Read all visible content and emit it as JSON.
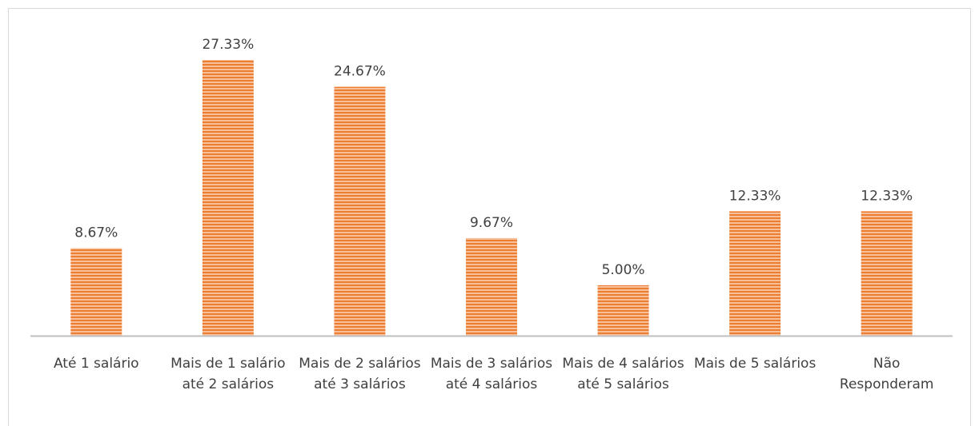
{
  "chart_data": {
    "type": "bar",
    "categories": [
      "Até 1 salário",
      "Mais de 1 salário até 2 salários",
      "Mais de 2 salários até 3 salários",
      "Mais de 3 salários até 4 salários",
      "Mais de 4 salários até 5 salários",
      "Mais de 5 salários",
      "Não Responderam"
    ],
    "values": [
      8.67,
      27.33,
      24.67,
      9.67,
      5.0,
      12.33,
      12.33
    ],
    "value_labels": [
      "8.67%",
      "27.33%",
      "24.67%",
      "9.67%",
      "5.00%",
      "12.33%",
      "12.33%"
    ],
    "color": "#ed7d31"
  }
}
